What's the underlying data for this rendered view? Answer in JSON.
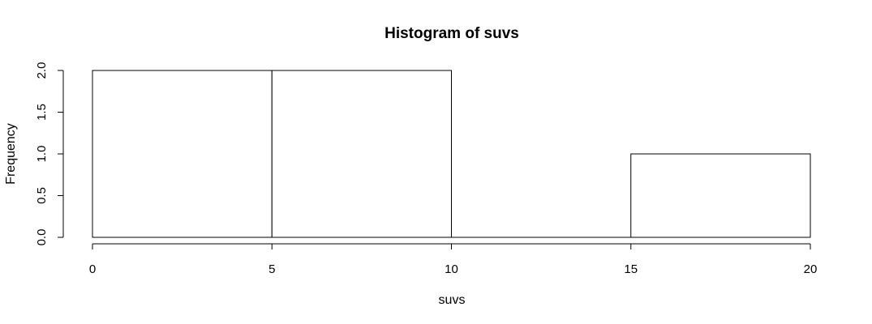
{
  "chart_data": {
    "type": "bar",
    "title": "Histogram of suvs",
    "xlabel": "suvs",
    "ylabel": "Frequency",
    "bins": [
      {
        "start": 0,
        "end": 5,
        "count": 2
      },
      {
        "start": 5,
        "end": 10,
        "count": 2
      },
      {
        "start": 10,
        "end": 15,
        "count": 0
      },
      {
        "start": 15,
        "end": 20,
        "count": 1
      }
    ],
    "xlim": [
      0,
      20
    ],
    "ylim": [
      0,
      2
    ],
    "xticks": [
      "0",
      "5",
      "10",
      "15",
      "20"
    ],
    "yticks": [
      "0.0",
      "0.5",
      "1.0",
      "1.5",
      "2.0"
    ],
    "bar_fill": "#ffffff",
    "bar_stroke": "#000000",
    "grid": false,
    "legend": "none"
  }
}
